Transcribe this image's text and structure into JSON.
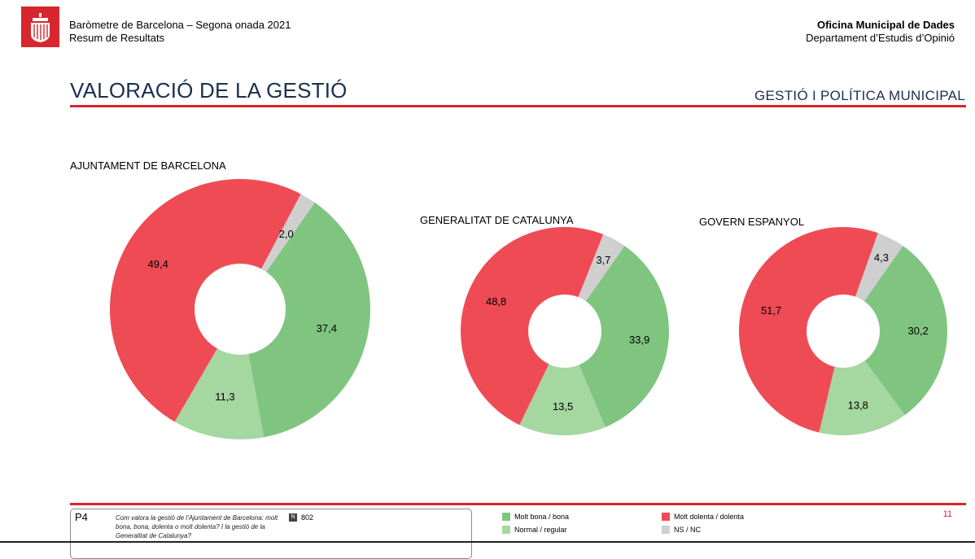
{
  "header": {
    "line1_left": "Baròmetre de Barcelona – Segona onada 2021",
    "line2_left": "Resum de Resultats",
    "line1_right": "Oficina Municipal de Dades",
    "line2_right": "Departament d’Estudis d’Opinió"
  },
  "page_title": "VALORACIÓ DE LA GESTIÓ",
  "section_title": "GESTIÓ I POLÍTICA MUNICIPAL",
  "colors": {
    "brand_red": "#d7262d",
    "molt_bona_bona": "#7fc57f",
    "normal_regular": "#a5d7a0",
    "molt_dolenta_dolenta": "#ef4b55",
    "ns_nc": "#cfcfcf"
  },
  "chart_data": [
    {
      "type": "pie",
      "title": "AJUNTAMENT DE BARCELONA",
      "donut": true,
      "categories": [
        "Molt bona / bona",
        "Normal / regular",
        "Molt dolenta / dolenta",
        "NS / NC"
      ],
      "values": [
        37.4,
        11.3,
        49.4,
        2.0
      ],
      "labels": [
        "37,4",
        "11,3",
        "49,4",
        "2,0"
      ]
    },
    {
      "type": "pie",
      "title": "GENERALITAT DE CATALUNYA",
      "donut": true,
      "categories": [
        "Molt bona / bona",
        "Normal / regular",
        "Molt dolenta / dolenta",
        "NS / NC"
      ],
      "values": [
        33.9,
        13.5,
        48.8,
        3.7
      ],
      "labels": [
        "33,9",
        "13,5",
        "48,8",
        "3,7"
      ]
    },
    {
      "type": "pie",
      "title": "GOVERN ESPANYOL",
      "donut": true,
      "categories": [
        "Molt bona / bona",
        "Normal / regular",
        "Molt dolenta / dolenta",
        "NS / NC"
      ],
      "values": [
        30.2,
        13.8,
        51.7,
        4.3
      ],
      "labels": [
        "30,2",
        "13,8",
        "51,7",
        "4,3"
      ]
    }
  ],
  "footer": {
    "code": "P4",
    "question": "Com valora la gestió de l’Ajuntament de Barcelona: molt bona, bona, dolenta o molt dolenta? I la gestió de la Generalitat de Catalunya?",
    "n_icon": "N",
    "n_value": "802",
    "legend": [
      {
        "label": "Molt bona / bona",
        "color": "#7fc57f"
      },
      {
        "label": "Normal / regular",
        "color": "#a5d7a0"
      },
      {
        "label": "Molt dolenta / dolenta",
        "color": "#ef4b55"
      },
      {
        "label": "NS / NC",
        "color": "#cfcfcf"
      }
    ],
    "page_number": "11"
  }
}
